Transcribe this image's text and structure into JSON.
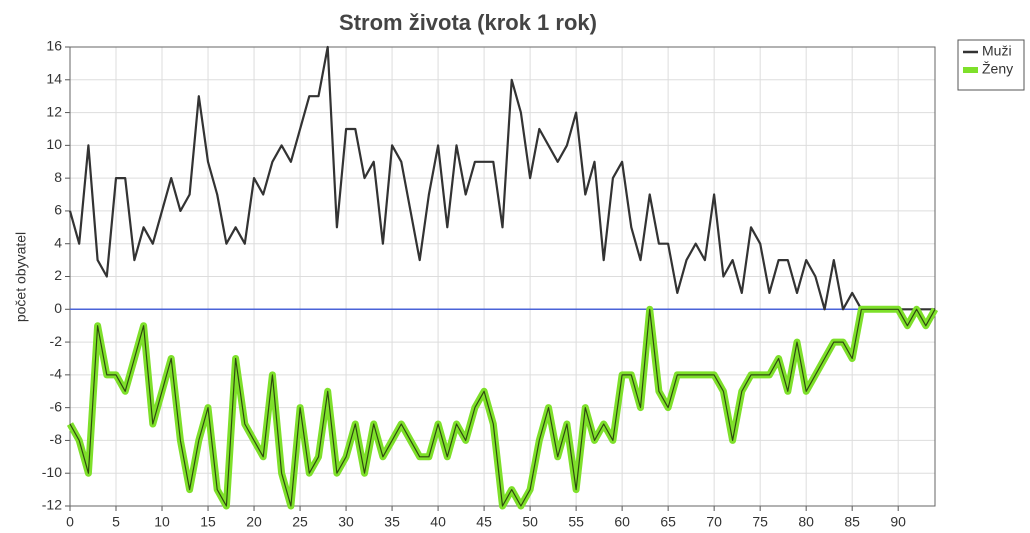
{
  "chart_data": {
    "type": "line",
    "title": "Strom života (krok 1 rok)",
    "ylabel": "počet obyvatel",
    "x": [
      0,
      1,
      2,
      3,
      4,
      5,
      6,
      7,
      8,
      9,
      10,
      11,
      12,
      13,
      14,
      15,
      16,
      17,
      18,
      19,
      20,
      21,
      22,
      23,
      24,
      25,
      26,
      27,
      28,
      29,
      30,
      31,
      32,
      33,
      34,
      35,
      36,
      37,
      38,
      39,
      40,
      41,
      42,
      43,
      44,
      45,
      46,
      47,
      48,
      49,
      50,
      51,
      52,
      53,
      54,
      55,
      56,
      57,
      58,
      59,
      60,
      61,
      62,
      63,
      64,
      65,
      66,
      67,
      68,
      69,
      70,
      71,
      72,
      73,
      74,
      75,
      76,
      77,
      78,
      79,
      80,
      81,
      82,
      83,
      84,
      85,
      86,
      87,
      88,
      89,
      90,
      91,
      92,
      93,
      94
    ],
    "series": [
      {
        "name": "Muži",
        "color": "#333333",
        "values": [
          6,
          4,
          10,
          3,
          2,
          8,
          8,
          3,
          5,
          4,
          6,
          8,
          6,
          7,
          13,
          9,
          7,
          4,
          5,
          4,
          8,
          7,
          9,
          10,
          9,
          11,
          13,
          13,
          16,
          5,
          11,
          11,
          8,
          9,
          4,
          10,
          9,
          6,
          3,
          7,
          10,
          5,
          10,
          7,
          9,
          9,
          9,
          5,
          14,
          12,
          8,
          11,
          10,
          9,
          10,
          12,
          7,
          9,
          3,
          8,
          9,
          5,
          3,
          7,
          4,
          4,
          1,
          3,
          4,
          3,
          7,
          2,
          3,
          1,
          5,
          4,
          1,
          3,
          3,
          1,
          3,
          2,
          0,
          3,
          0,
          1,
          0,
          0,
          0,
          0,
          0,
          0,
          0,
          0,
          0
        ]
      },
      {
        "name": "Ženy",
        "color": "#7ee02a",
        "values": [
          -7,
          -8,
          -10,
          -1,
          -4,
          -4,
          -5,
          -3,
          -1,
          -7,
          -5,
          -3,
          -8,
          -11,
          -8,
          -6,
          -11,
          -12,
          -3,
          -7,
          -8,
          -9,
          -4,
          -10,
          -12,
          -6,
          -10,
          -9,
          -5,
          -10,
          -9,
          -7,
          -10,
          -7,
          -9,
          -8,
          -7,
          -8,
          -9,
          -9,
          -7,
          -9,
          -7,
          -8,
          -6,
          -5,
          -7,
          -12,
          -11,
          -12,
          -11,
          -8,
          -6,
          -9,
          -7,
          -11,
          -6,
          -8,
          -7,
          -8,
          -4,
          -4,
          -6,
          0,
          -5,
          -6,
          -4,
          -4,
          -4,
          -4,
          -4,
          -5,
          -8,
          -5,
          -4,
          -4,
          -4,
          -3,
          -5,
          -2,
          -5,
          -4,
          -3,
          -2,
          -2,
          -3,
          0,
          0,
          0,
          0,
          0,
          -1,
          0,
          -1,
          0
        ]
      }
    ],
    "xlim": [
      0,
      94
    ],
    "xticks": [
      0,
      5,
      10,
      15,
      20,
      25,
      30,
      35,
      40,
      45,
      50,
      55,
      60,
      65,
      70,
      75,
      80,
      85,
      90
    ],
    "ylim": [
      -12,
      16
    ],
    "yticks": [
      -12,
      -10,
      -8,
      -6,
      -4,
      -2,
      0,
      2,
      4,
      6,
      8,
      10,
      12,
      14,
      16
    ],
    "grid": true,
    "hline": {
      "value": 0,
      "color": "#4a63d8"
    },
    "legend": "upper right outside"
  }
}
